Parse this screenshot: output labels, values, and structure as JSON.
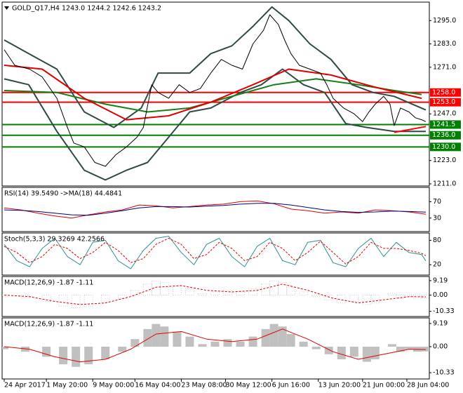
{
  "chart_data": [
    {
      "type": "line",
      "title": "GOLD_Q17,H4  1243.0 1244.2 1242.6 1243.2",
      "xlim": [
        0,
        100
      ],
      "ylim": [
        1209.9,
        1304.5
      ],
      "yticks": [
        {
          "value": 1211,
          "label": "1211.0"
        },
        {
          "value": 1223,
          "label": "1223.0"
        },
        {
          "value": 1247,
          "label": "1247.0"
        },
        {
          "value": 1271,
          "label": "1271.0"
        },
        {
          "value": 1283,
          "label": "1283.0"
        },
        {
          "value": 1295,
          "label": "1295.0"
        }
      ],
      "hlines": [
        {
          "value": 1258,
          "label": "1258.0",
          "color": "#ff0000"
        },
        {
          "value": 1253,
          "label": "1253.0",
          "color": "#ff0000"
        },
        {
          "value": 1241.5,
          "label": "1241.5",
          "color": "#008000"
        },
        {
          "value": 1236,
          "label": "1236.0",
          "color": "#008000"
        },
        {
          "value": 1230,
          "label": "1230.0",
          "color": "#008000"
        }
      ],
      "series": [
        {
          "color": "#2f4a44",
          "thick": true,
          "x": [
            0,
            5.8,
            12.5,
            19,
            26,
            32.5,
            36.5,
            44,
            49,
            54,
            59,
            63.5,
            67.5,
            72.5,
            77.5,
            82.5,
            87.5,
            92.5,
            100
          ],
          "values": [
            1285,
            1278,
            1270,
            1248,
            1240,
            1250,
            1268,
            1268,
            1278,
            1282,
            1292,
            1302,
            1295,
            1283,
            1275,
            1262,
            1258,
            1256,
            1249
          ]
        },
        {
          "color": "#2f4a44",
          "thick": true,
          "x": [
            0,
            5.8,
            12.5,
            19,
            24,
            29,
            34,
            39,
            44,
            49,
            56,
            61,
            66,
            71,
            76,
            81,
            86,
            92.5,
            100
          ],
          "values": [
            1265,
            1262,
            1238,
            1218,
            1213,
            1218,
            1222,
            1235,
            1248,
            1250,
            1258,
            1262,
            1270,
            1262,
            1258,
            1242,
            1240,
            1238,
            1238
          ]
        },
        {
          "color": "#1a7f1a",
          "thick": true,
          "x": [
            0,
            12.5,
            24,
            34,
            44,
            54,
            64,
            74,
            84,
            92.5,
            99
          ],
          "values": [
            1259,
            1258,
            1252,
            1248,
            1250,
            1256,
            1262,
            1265,
            1262,
            1259,
            1257
          ]
        },
        {
          "color": "#e00000",
          "thick": true,
          "x": [
            0,
            9,
            19,
            29,
            39,
            49,
            59,
            67.5,
            77.5,
            87.5,
            99
          ],
          "values": [
            1272,
            1270,
            1255,
            1244,
            1246,
            1253,
            1262,
            1270,
            1267,
            1261,
            1255
          ]
        },
        {
          "color": "#000000",
          "x": [
            0,
            2.5,
            6,
            9,
            12.5,
            15,
            16.5,
            19,
            21.5,
            24,
            26.5,
            29,
            31.5,
            33,
            35,
            36.5,
            39,
            41.5,
            44,
            46.5,
            49,
            51.5,
            54,
            56.5,
            59,
            61.5,
            63,
            65,
            66.5,
            68,
            70,
            72.5,
            75,
            76.5,
            78,
            80.5,
            83,
            85,
            86.5,
            88,
            90,
            91.5,
            92.5,
            94,
            96,
            97.5,
            99,
            100
          ],
          "values": [
            1280,
            1272,
            1270,
            1266,
            1255,
            1240,
            1232,
            1230,
            1222,
            1220,
            1226,
            1230,
            1235,
            1240,
            1262,
            1258,
            1255,
            1262,
            1258,
            1260,
            1268,
            1275,
            1272,
            1270,
            1283,
            1290,
            1298,
            1293,
            1285,
            1278,
            1272,
            1270,
            1268,
            1262,
            1255,
            1250,
            1247,
            1243,
            1248,
            1252,
            1256,
            1252,
            1241,
            1250,
            1248,
            1245,
            1244,
            1243
          ]
        },
        {
          "color": "#ff0000",
          "thick": true,
          "x": [
            92.5,
            100
          ],
          "values": [
            1237.5,
            1240.5
          ]
        }
      ]
    },
    {
      "type": "line",
      "title": "RSI(14) 39.5490  ->MA(18) 44.4841",
      "xlim": [
        0,
        100
      ],
      "ylim": [
        -3,
        105
      ],
      "yticks": [
        30,
        70
      ],
      "series": [
        {
          "color": "#e00000",
          "x": [
            0,
            4,
            8,
            12,
            16,
            20,
            24,
            28,
            32,
            36,
            40,
            44,
            48,
            52,
            56,
            60,
            64,
            68,
            72,
            76,
            80,
            84,
            88,
            92,
            96,
            100
          ],
          "values": [
            55,
            50,
            42,
            35,
            30,
            38,
            45,
            50,
            62,
            60,
            55,
            58,
            62,
            64,
            70,
            72,
            65,
            52,
            48,
            42,
            45,
            42,
            50,
            48,
            45,
            39.5
          ]
        },
        {
          "color": "#00007f",
          "x": [
            0,
            4,
            8,
            12,
            16,
            20,
            24,
            28,
            32,
            36,
            40,
            44,
            48,
            52,
            56,
            60,
            64,
            68,
            72,
            76,
            80,
            84,
            88,
            92,
            96,
            100
          ],
          "values": [
            50,
            49,
            46,
            42,
            38,
            37,
            42,
            48,
            55,
            58,
            58,
            57,
            59,
            61,
            64,
            66,
            66,
            62,
            56,
            50,
            46,
            44,
            45,
            47,
            46,
            44.5
          ]
        }
      ]
    },
    {
      "type": "line",
      "title": "Stoch(5,3,3) 29.3269 42.2566",
      "xlim": [
        0,
        100
      ],
      "ylim": [
        -5.5,
        98
      ],
      "yticks": [
        20,
        80
      ],
      "series": [
        {
          "color": "#2f8f8f",
          "x": [
            0,
            3,
            6,
            9,
            12,
            15,
            18,
            21,
            24,
            27,
            30,
            33,
            36,
            39,
            42,
            45,
            48,
            51,
            54,
            57,
            60,
            63,
            66,
            69,
            72,
            75,
            78,
            81,
            84,
            87,
            90,
            93,
            96,
            99,
            100
          ],
          "values": [
            70,
            30,
            15,
            60,
            85,
            40,
            20,
            75,
            80,
            30,
            10,
            55,
            85,
            90,
            50,
            20,
            70,
            85,
            40,
            15,
            65,
            85,
            30,
            20,
            75,
            80,
            25,
            15,
            60,
            85,
            40,
            75,
            50,
            45,
            29.3
          ]
        },
        {
          "color": "#e00000",
          "dash": true,
          "x": [
            0,
            3,
            6,
            9,
            12,
            15,
            18,
            21,
            24,
            27,
            30,
            33,
            36,
            39,
            42,
            45,
            48,
            51,
            54,
            57,
            60,
            63,
            66,
            69,
            72,
            75,
            78,
            81,
            84,
            87,
            90,
            93,
            96,
            99,
            100
          ],
          "values": [
            65,
            50,
            25,
            40,
            70,
            60,
            35,
            50,
            75,
            55,
            25,
            35,
            70,
            85,
            70,
            35,
            45,
            75,
            60,
            30,
            40,
            75,
            60,
            30,
            50,
            78,
            50,
            22,
            40,
            75,
            60,
            60,
            55,
            48,
            42.3
          ]
        }
      ]
    },
    {
      "type": "macd",
      "title": "MACD(12,26,9) -1.87 -1.11",
      "xlim": [
        0,
        100
      ],
      "ylim": [
        -13.6,
        11.8
      ],
      "yticks": [
        -10.33,
        {
          "value": 0,
          "label": "0.00"
        },
        9.19
      ],
      "histogram": {
        "color": "#c8c8c8",
        "dash": true,
        "x": [
          0,
          5,
          10,
          14,
          17,
          20,
          24,
          28,
          31,
          34,
          36,
          38,
          41,
          44,
          47,
          50,
          53,
          56,
          59,
          62,
          64,
          66,
          68,
          71,
          74,
          77,
          80,
          83,
          86,
          88,
          90,
          92,
          94,
          96,
          98,
          100
        ],
        "values": [
          -1,
          -2,
          -4,
          -7,
          -8,
          -7,
          -5,
          -2,
          3,
          7,
          9,
          8,
          6,
          4,
          1,
          2,
          3,
          2,
          4,
          7,
          9,
          8,
          5,
          2,
          -1,
          -3,
          -5,
          -4,
          -6,
          -5,
          0,
          1,
          -2,
          -1,
          -2,
          -1.87
        ]
      },
      "series": [
        {
          "color": "#e00000",
          "dash": true,
          "x": [
            0,
            6,
            12,
            18,
            24,
            30,
            36,
            42,
            48,
            54,
            60,
            66,
            72,
            78,
            84,
            90,
            96,
            100
          ],
          "values": [
            0,
            -1,
            -4,
            -6,
            -5,
            -1,
            5,
            6,
            3,
            2,
            3,
            7,
            3,
            -2,
            -5,
            -3,
            -1,
            -1.11
          ]
        }
      ]
    },
    {
      "type": "macd",
      "title": "MACD(12,26,9) -1.87 -1.11",
      "xlim": [
        0,
        100
      ],
      "ylim": [
        -12.8,
        11.4
      ],
      "yticks": [
        -10.33,
        {
          "value": 0,
          "label": "0.00"
        },
        9.19
      ],
      "xticks": [
        {
          "value": 0,
          "label": "24 Apr 2017"
        },
        {
          "value": 10,
          "label": "1 May 20:00"
        },
        {
          "value": 21,
          "label": "9 May 00:00"
        },
        {
          "value": 31,
          "label": "16 May 04:00"
        },
        {
          "value": 42,
          "label": "23 May 08:00"
        },
        {
          "value": 52.5,
          "label": "30 May 12:00"
        },
        {
          "value": 63.5,
          "label": "6 Jun 16:00"
        },
        {
          "value": 74.5,
          "label": "13 Jun 20:00"
        },
        {
          "value": 85,
          "label": "21 Jun 00:00"
        },
        {
          "value": 95.5,
          "label": "28 Jun 04:00"
        }
      ],
      "histogram": {
        "color": "#c0c0c0",
        "x": [
          0,
          5,
          10,
          14,
          17,
          20,
          24,
          28,
          31,
          34,
          36,
          38,
          41,
          44,
          47,
          50,
          53,
          56,
          59,
          62,
          64,
          66,
          68,
          71,
          74,
          77,
          80,
          83,
          86,
          88,
          90,
          92,
          94,
          96,
          98,
          100
        ],
        "values": [
          -1,
          -2,
          -4,
          -7,
          -8,
          -7,
          -5,
          -2,
          3,
          7,
          9,
          8,
          6,
          4,
          1,
          2,
          3,
          2,
          4,
          7,
          9,
          8,
          5,
          2,
          -1,
          -3,
          -5,
          -4,
          -6,
          -5,
          0,
          1,
          -2,
          -1,
          -2,
          -1.87
        ]
      },
      "series": [
        {
          "color": "#e00000",
          "x": [
            0,
            6,
            12,
            18,
            24,
            30,
            36,
            42,
            48,
            54,
            60,
            66,
            72,
            78,
            84,
            90,
            96,
            100
          ],
          "values": [
            0,
            -1,
            -4,
            -6,
            -5,
            -1,
            5,
            6,
            3,
            2,
            3,
            7,
            3,
            -2,
            -5,
            -3,
            -1,
            -1.11
          ]
        }
      ]
    }
  ]
}
